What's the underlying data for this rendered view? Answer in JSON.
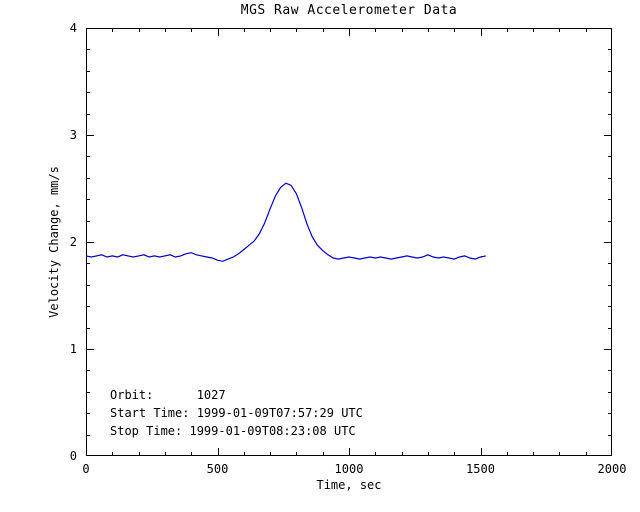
{
  "figure": {
    "background_color": "#ffffff",
    "axis_color": "#000000"
  },
  "chart_data": {
    "type": "line",
    "title": "MGS Raw Accelerometer Data",
    "xlabel": "Time, sec",
    "ylabel": "Velocity Change, mm/s",
    "xlim": [
      0,
      2000
    ],
    "ylim": [
      0,
      4
    ],
    "xticks": [
      0,
      500,
      1000,
      1500,
      2000
    ],
    "yticks": [
      0,
      1,
      2,
      3,
      4
    ],
    "x_minor_step": 100,
    "y_minor_step": 0.2,
    "grid": false,
    "legend": "none",
    "line_color": "#0000cd",
    "series": [
      {
        "name": "velocity_change_mm_per_s",
        "x": [
          0,
          20,
          40,
          60,
          80,
          100,
          120,
          140,
          160,
          180,
          200,
          220,
          240,
          260,
          280,
          300,
          320,
          340,
          360,
          380,
          400,
          420,
          440,
          460,
          480,
          500,
          520,
          540,
          560,
          580,
          600,
          620,
          640,
          660,
          680,
          700,
          720,
          740,
          760,
          780,
          800,
          820,
          840,
          860,
          880,
          900,
          920,
          940,
          960,
          980,
          1000,
          1020,
          1040,
          1060,
          1080,
          1100,
          1120,
          1140,
          1160,
          1180,
          1200,
          1220,
          1240,
          1260,
          1280,
          1300,
          1320,
          1340,
          1360,
          1380,
          1400,
          1420,
          1440,
          1460,
          1480,
          1500,
          1520
        ],
        "y": [
          1.87,
          1.86,
          1.87,
          1.88,
          1.86,
          1.87,
          1.86,
          1.88,
          1.87,
          1.86,
          1.87,
          1.88,
          1.86,
          1.87,
          1.86,
          1.87,
          1.88,
          1.86,
          1.87,
          1.89,
          1.9,
          1.88,
          1.87,
          1.86,
          1.85,
          1.83,
          1.82,
          1.84,
          1.86,
          1.89,
          1.93,
          1.97,
          2.01,
          2.08,
          2.18,
          2.31,
          2.43,
          2.51,
          2.55,
          2.53,
          2.45,
          2.32,
          2.17,
          2.05,
          1.97,
          1.92,
          1.88,
          1.85,
          1.84,
          1.85,
          1.86,
          1.85,
          1.84,
          1.85,
          1.86,
          1.85,
          1.86,
          1.85,
          1.84,
          1.85,
          1.86,
          1.87,
          1.86,
          1.85,
          1.86,
          1.88,
          1.86,
          1.85,
          1.86,
          1.85,
          1.84,
          1.86,
          1.87,
          1.85,
          1.84,
          1.86,
          1.87
        ]
      }
    ],
    "annotations": [
      "Orbit:      1027",
      "Start Time: 1999-01-09T07:57:29 UTC",
      "Stop Time: 1999-01-09T08:23:08 UTC"
    ]
  }
}
